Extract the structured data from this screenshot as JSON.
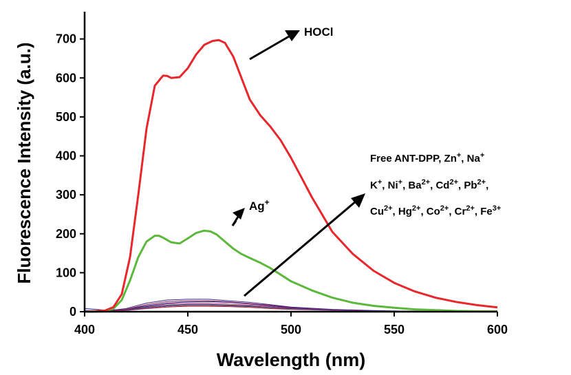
{
  "chart_data": {
    "type": "line",
    "xlabel": "Wavelength (nm)",
    "ylabel": "Fluorescence Intensity (a.u.)",
    "xlim": [
      400,
      600
    ],
    "ylim": [
      0,
      770
    ],
    "x_ticks": [
      400,
      450,
      500,
      550,
      600
    ],
    "y_ticks": [
      0,
      100,
      200,
      300,
      400,
      500,
      600,
      700
    ],
    "x_tick_labels": [
      "400",
      "450",
      "500",
      "550",
      "600"
    ],
    "y_tick_labels": [
      "0",
      "100",
      "200",
      "300",
      "400",
      "500",
      "600",
      "700"
    ],
    "grid": false,
    "annotations": {
      "hocl": "HOCl",
      "ag": {
        "base": "Ag",
        "sup": "+"
      },
      "others_line1": [
        "Free ANT-DPP, Zn",
        "+",
        ", Na",
        "+"
      ],
      "others_line2": [
        "K",
        "+",
        ", Ni",
        "+",
        ", Ba",
        "2+",
        ", Cd",
        "2+",
        ", Pb",
        "2+",
        ","
      ],
      "others_line3": [
        "Cu",
        "2+",
        ", Hg",
        "2+",
        ", Co",
        "2+",
        ", Cr",
        "2+",
        ", Fe",
        "3+"
      ]
    },
    "series": [
      {
        "color": "#e8262b",
        "x": [
          400,
          405,
          410,
          414,
          418,
          422,
          426,
          430,
          434,
          438,
          440,
          442,
          446,
          450,
          454,
          458,
          462,
          465,
          468,
          472,
          476,
          480,
          485,
          490,
          495,
          500,
          505,
          510,
          515,
          520,
          530,
          540,
          550,
          560,
          570,
          580,
          590,
          600
        ],
        "values": [
          0,
          1,
          3,
          12,
          45,
          140,
          300,
          470,
          580,
          606,
          605,
          600,
          602,
          625,
          660,
          685,
          695,
          697,
          690,
          655,
          600,
          545,
          505,
          475,
          440,
          395,
          345,
          295,
          250,
          205,
          148,
          105,
          74,
          52,
          36,
          25,
          17,
          11
        ]
      },
      {
        "color": "#5cb83b",
        "x": [
          400,
          405,
          410,
          414,
          418,
          422,
          426,
          430,
          434,
          436,
          438,
          442,
          446,
          450,
          454,
          458,
          461,
          464,
          468,
          472,
          476,
          480,
          485,
          490,
          495,
          500,
          510,
          520,
          530,
          540,
          550,
          560,
          570,
          580,
          590,
          600
        ],
        "values": [
          0,
          0,
          2,
          8,
          30,
          80,
          140,
          180,
          195,
          195,
          190,
          178,
          175,
          188,
          202,
          208,
          206,
          198,
          180,
          162,
          148,
          138,
          126,
          112,
          95,
          78,
          55,
          36,
          23,
          15,
          10,
          6,
          4,
          2,
          1,
          1
        ]
      },
      {
        "color": "#3d2a8a",
        "x": [
          400,
          410,
          420,
          430,
          440,
          450,
          460,
          470,
          480,
          490,
          500,
          520,
          540,
          560,
          580,
          600
        ],
        "values": [
          0,
          2,
          8,
          22,
          30,
          32,
          32,
          28,
          24,
          18,
          12,
          6,
          3,
          1,
          1,
          0
        ]
      },
      {
        "color": "#8b1a4a",
        "x": [
          400,
          410,
          420,
          430,
          440,
          450,
          460,
          470,
          480,
          490,
          500,
          520,
          540,
          560,
          580,
          600
        ],
        "values": [
          0,
          1,
          6,
          18,
          26,
          28,
          28,
          25,
          21,
          16,
          11,
          5,
          2,
          1,
          0,
          0
        ]
      },
      {
        "color": "#1a1a8a",
        "x": [
          400,
          410,
          420,
          430,
          440,
          450,
          460,
          470,
          480,
          490,
          500,
          520,
          540,
          560,
          580,
          600
        ],
        "values": [
          8,
          4,
          6,
          15,
          22,
          25,
          26,
          24,
          20,
          15,
          10,
          5,
          2,
          1,
          0,
          0
        ]
      },
      {
        "color": "#c23a8e",
        "x": [
          400,
          410,
          420,
          430,
          440,
          450,
          460,
          470,
          480,
          490,
          500,
          520,
          540,
          560,
          580,
          600
        ],
        "values": [
          0,
          1,
          5,
          14,
          20,
          22,
          22,
          20,
          17,
          13,
          9,
          4,
          2,
          1,
          0,
          0
        ]
      },
      {
        "color": "#3a3a3a",
        "x": [
          400,
          410,
          420,
          430,
          440,
          450,
          460,
          470,
          480,
          490,
          500,
          520,
          540,
          560,
          580,
          600
        ],
        "values": [
          0,
          1,
          4,
          12,
          17,
          19,
          19,
          17,
          15,
          11,
          8,
          4,
          2,
          1,
          0,
          0
        ]
      },
      {
        "color": "#3a6ab8",
        "x": [
          400,
          410,
          420,
          430,
          440,
          450,
          460,
          470,
          480,
          490,
          500,
          520,
          540,
          560,
          580,
          600
        ],
        "values": [
          3,
          2,
          4,
          11,
          16,
          18,
          18,
          16,
          14,
          10,
          7,
          3,
          1,
          1,
          0,
          0
        ]
      },
      {
        "color": "#7a2a7a",
        "x": [
          400,
          410,
          420,
          430,
          440,
          450,
          460,
          470,
          480,
          490,
          500,
          520,
          540,
          560,
          580,
          600
        ],
        "values": [
          0,
          1,
          3,
          9,
          14,
          16,
          16,
          15,
          13,
          10,
          7,
          3,
          1,
          0,
          0,
          0
        ]
      },
      {
        "color": "#b02020",
        "x": [
          400,
          410,
          420,
          430,
          440,
          450,
          460,
          470,
          480,
          490,
          500,
          520,
          540,
          560,
          580,
          600
        ],
        "values": [
          0,
          0,
          3,
          8,
          12,
          14,
          14,
          13,
          11,
          8,
          6,
          3,
          1,
          0,
          0,
          0
        ]
      }
    ]
  }
}
